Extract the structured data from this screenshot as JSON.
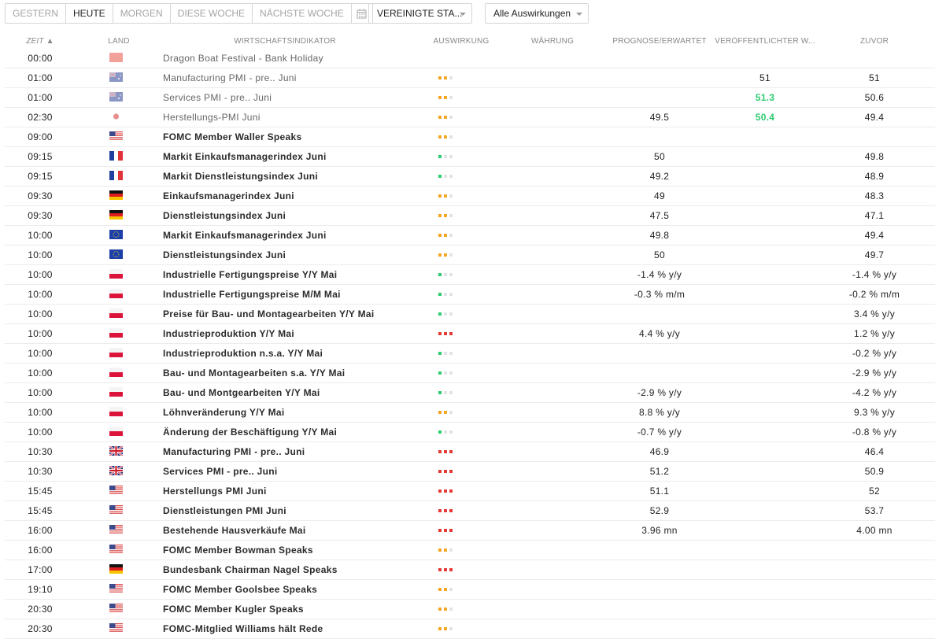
{
  "toolbar": {
    "periods": [
      {
        "id": "yesterday",
        "label": "GESTERN",
        "active": false
      },
      {
        "id": "today",
        "label": "HEUTE",
        "active": true
      },
      {
        "id": "tomorrow",
        "label": "MORGEN",
        "active": false
      },
      {
        "id": "this-week",
        "label": "DIESE WOCHE",
        "active": false
      },
      {
        "id": "next-week",
        "label": "NÄCHSTE WOCHE",
        "active": false
      }
    ],
    "country_filter": "VEREINIGTE STA...",
    "impact_filter": "Alle Auswirkungen"
  },
  "table": {
    "headers": {
      "time": "ZEIT ▲",
      "country": "LAND",
      "indicator": "WIRTSCHAFTSINDIKATOR",
      "impact": "AUSWIRKUNG",
      "currency": "WÄHRUNG",
      "forecast": "PROGNOSE/ERWARTET",
      "actual": "VERÖFFENTLICHTER W...",
      "previous": "ZUVOR"
    },
    "impact_colors": {
      "low": "#2ecc71",
      "medium": "#f5a623",
      "high": "#e53935",
      "empty": "#e3e3e3"
    },
    "rows": [
      {
        "time": "00:00",
        "flag": "china-flag",
        "name": "Dragon Boat Festival - Bank Holiday",
        "impact": 0,
        "forecast": "",
        "actual": "",
        "actual_up": false,
        "previous": "",
        "past": true
      },
      {
        "time": "01:00",
        "flag": "australia-flag",
        "name": "Manufacturing PMI - pre.. Juni",
        "impact": 2,
        "forecast": "",
        "actual": "51",
        "actual_up": false,
        "previous": "51",
        "past": true
      },
      {
        "time": "01:00",
        "flag": "australia-flag",
        "name": "Services PMI - pre.. Juni",
        "impact": 2,
        "forecast": "",
        "actual": "51.3",
        "actual_up": true,
        "previous": "50.6",
        "past": true
      },
      {
        "time": "02:30",
        "flag": "japan-flag",
        "name": "Herstellungs-PMI Juni",
        "impact": 2,
        "forecast": "49.5",
        "actual": "50.4",
        "actual_up": true,
        "previous": "49.4",
        "past": true
      },
      {
        "time": "09:00",
        "flag": "usa-flag",
        "name": "FOMC Member Waller Speaks",
        "impact": 2,
        "forecast": "",
        "actual": "",
        "actual_up": false,
        "previous": "",
        "past": false
      },
      {
        "time": "09:15",
        "flag": "france-flag",
        "name": "Markit Einkaufsmanagerindex Juni",
        "impact": 1,
        "forecast": "50",
        "actual": "",
        "actual_up": false,
        "previous": "49.8",
        "past": false
      },
      {
        "time": "09:15",
        "flag": "france-flag",
        "name": "Markit Dienstleistungsindex Juni",
        "impact": 1,
        "forecast": "49.2",
        "actual": "",
        "actual_up": false,
        "previous": "48.9",
        "past": false
      },
      {
        "time": "09:30",
        "flag": "germany-flag",
        "name": "Einkaufsmanagerindex Juni",
        "impact": 2,
        "forecast": "49",
        "actual": "",
        "actual_up": false,
        "previous": "48.3",
        "past": false
      },
      {
        "time": "09:30",
        "flag": "germany-flag",
        "name": "Dienstleistungsindex Juni",
        "impact": 2,
        "forecast": "47.5",
        "actual": "",
        "actual_up": false,
        "previous": "47.1",
        "past": false
      },
      {
        "time": "10:00",
        "flag": "eu-flag",
        "name": "Markit Einkaufsmanagerindex Juni",
        "impact": 2,
        "forecast": "49.8",
        "actual": "",
        "actual_up": false,
        "previous": "49.4",
        "past": false
      },
      {
        "time": "10:00",
        "flag": "eu-flag",
        "name": "Dienstleistungsindex Juni",
        "impact": 2,
        "forecast": "50",
        "actual": "",
        "actual_up": false,
        "previous": "49.7",
        "past": false
      },
      {
        "time": "10:00",
        "flag": "poland-flag",
        "name": "Industrielle Fertigungspreise Y/Y Mai",
        "impact": 1,
        "forecast": "-1.4 % y/y",
        "actual": "",
        "actual_up": false,
        "previous": "-1.4 % y/y",
        "past": false
      },
      {
        "time": "10:00",
        "flag": "poland-flag",
        "name": "Industrielle Fertigungspreise M/M Mai",
        "impact": 1,
        "forecast": "-0.3 % m/m",
        "actual": "",
        "actual_up": false,
        "previous": "-0.2 % m/m",
        "past": false
      },
      {
        "time": "10:00",
        "flag": "poland-flag",
        "name": "Preise für Bau- und Montagearbeiten Y/Y Mai",
        "impact": 1,
        "forecast": "",
        "actual": "",
        "actual_up": false,
        "previous": "3.4 % y/y",
        "past": false
      },
      {
        "time": "10:00",
        "flag": "poland-flag",
        "name": "Industrieproduktion Y/Y Mai",
        "impact": 3,
        "forecast": "4.4 % y/y",
        "actual": "",
        "actual_up": false,
        "previous": "1.2 % y/y",
        "past": false
      },
      {
        "time": "10:00",
        "flag": "poland-flag",
        "name": "Industrieproduktion n.s.a. Y/Y Mai",
        "impact": 1,
        "forecast": "",
        "actual": "",
        "actual_up": false,
        "previous": "-0.2 % y/y",
        "past": false
      },
      {
        "time": "10:00",
        "flag": "poland-flag",
        "name": "Bau- und Montagearbeiten s.a. Y/Y Mai",
        "impact": 1,
        "forecast": "",
        "actual": "",
        "actual_up": false,
        "previous": "-2.9 % y/y",
        "past": false
      },
      {
        "time": "10:00",
        "flag": "poland-flag",
        "name": "Bau- und Montgearbeiten Y/Y Mai",
        "impact": 1,
        "forecast": "-2.9 % y/y",
        "actual": "",
        "actual_up": false,
        "previous": "-4.2 % y/y",
        "past": false
      },
      {
        "time": "10:00",
        "flag": "poland-flag",
        "name": "Löhnveränderung Y/Y Mai",
        "impact": 2,
        "forecast": "8.8 % y/y",
        "actual": "",
        "actual_up": false,
        "previous": "9.3 % y/y",
        "past": false
      },
      {
        "time": "10:00",
        "flag": "poland-flag",
        "name": "Änderung der Beschäftigung Y/Y Mai",
        "impact": 1,
        "forecast": "-0.7 % y/y",
        "actual": "",
        "actual_up": false,
        "previous": "-0.8 % y/y",
        "past": false
      },
      {
        "time": "10:30",
        "flag": "uk-flag",
        "name": "Manufacturing PMI - pre.. Juni",
        "impact": 3,
        "forecast": "46.9",
        "actual": "",
        "actual_up": false,
        "previous": "46.4",
        "past": false
      },
      {
        "time": "10:30",
        "flag": "uk-flag",
        "name": "Services PMI - pre.. Juni",
        "impact": 3,
        "forecast": "51.2",
        "actual": "",
        "actual_up": false,
        "previous": "50.9",
        "past": false
      },
      {
        "time": "15:45",
        "flag": "usa-flag",
        "name": "Herstellungs PMI Juni",
        "impact": 3,
        "forecast": "51.1",
        "actual": "",
        "actual_up": false,
        "previous": "52",
        "past": false
      },
      {
        "time": "15:45",
        "flag": "usa-flag",
        "name": "Dienstleistungen PMI Juni",
        "impact": 3,
        "forecast": "52.9",
        "actual": "",
        "actual_up": false,
        "previous": "53.7",
        "past": false
      },
      {
        "time": "16:00",
        "flag": "usa-flag",
        "name": "Bestehende Hausverkäufe Mai",
        "impact": 3,
        "forecast": "3.96 mn",
        "actual": "",
        "actual_up": false,
        "previous": "4.00 mn",
        "past": false
      },
      {
        "time": "16:00",
        "flag": "usa-flag",
        "name": "FOMC Member Bowman Speaks",
        "impact": 2,
        "forecast": "",
        "actual": "",
        "actual_up": false,
        "previous": "",
        "past": false
      },
      {
        "time": "17:00",
        "flag": "germany-flag",
        "name": "Bundesbank Chairman Nagel Speaks",
        "impact": 3,
        "forecast": "",
        "actual": "",
        "actual_up": false,
        "previous": "",
        "past": false
      },
      {
        "time": "19:10",
        "flag": "usa-flag",
        "name": "FOMC Member Goolsbee Speaks",
        "impact": 2,
        "forecast": "",
        "actual": "",
        "actual_up": false,
        "previous": "",
        "past": false
      },
      {
        "time": "20:30",
        "flag": "usa-flag",
        "name": "FOMC Member Kugler Speaks",
        "impact": 2,
        "forecast": "",
        "actual": "",
        "actual_up": false,
        "previous": "",
        "past": false
      },
      {
        "time": "20:30",
        "flag": "usa-flag",
        "name": "FOMC-Mitglied Williams hält Rede",
        "impact": 2,
        "forecast": "",
        "actual": "",
        "actual_up": false,
        "previous": "",
        "past": false
      }
    ]
  }
}
